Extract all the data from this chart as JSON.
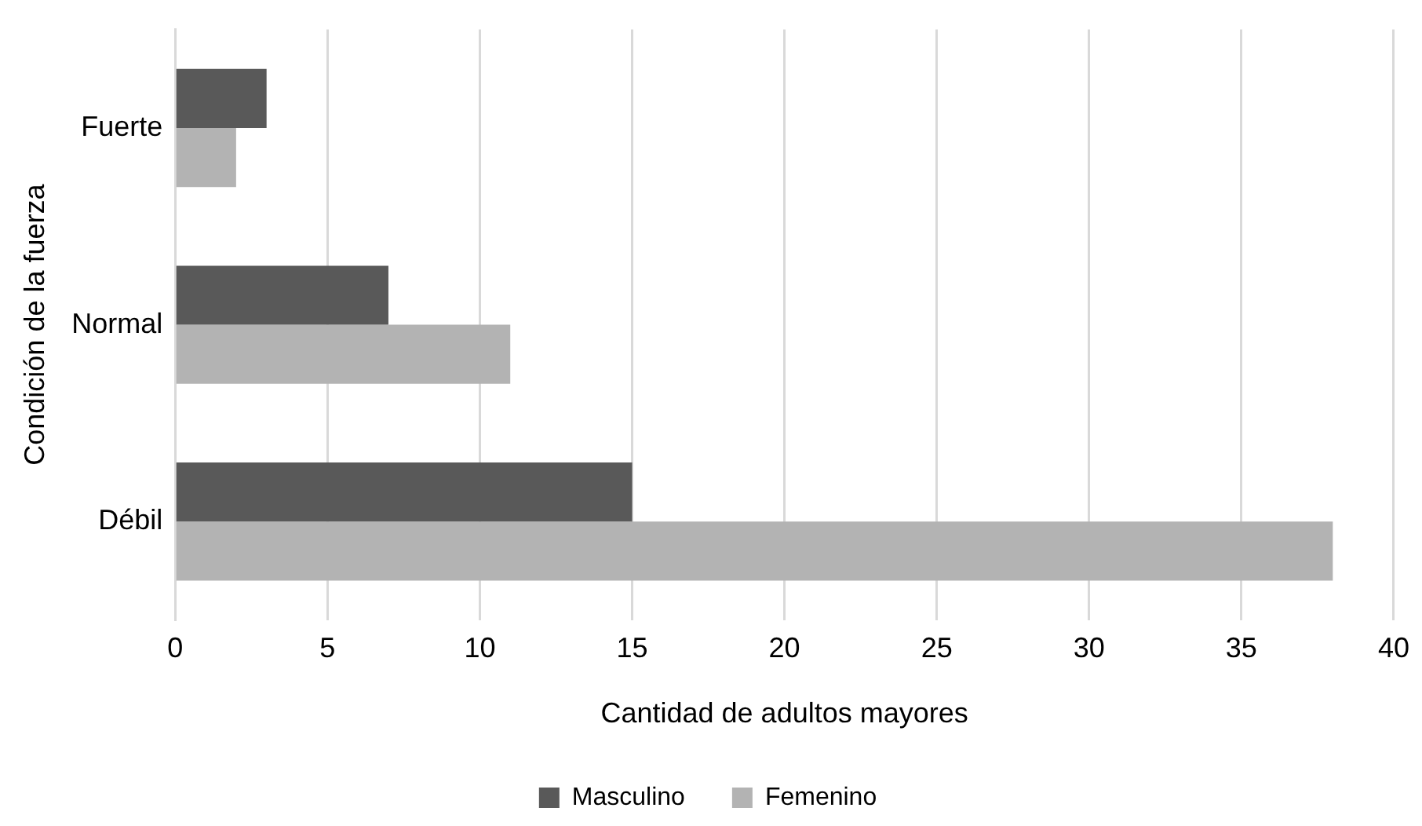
{
  "chart_data": {
    "type": "bar",
    "orientation": "horizontal",
    "xlabel": "Cantidad de adultos mayores",
    "ylabel": "Condición de la fuerza",
    "categories": [
      "Fuerte",
      "Normal",
      "Débil"
    ],
    "series": [
      {
        "name": "Masculino",
        "color": "#595959",
        "values": [
          3,
          7,
          15
        ]
      },
      {
        "name": "Femenino",
        "color": "#b3b3b3",
        "values": [
          2,
          11,
          38
        ]
      }
    ],
    "xlim": [
      0,
      40
    ],
    "xticks": [
      0,
      5,
      10,
      15,
      20,
      25,
      30,
      35,
      40
    ],
    "grid": "x",
    "legend": "bottom"
  }
}
